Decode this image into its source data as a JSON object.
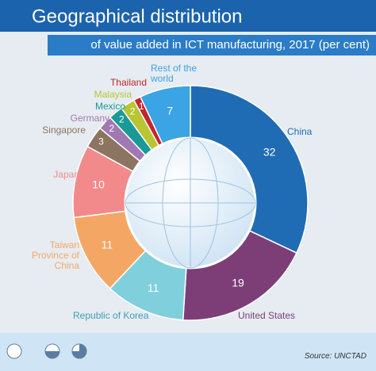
{
  "chart_data": {
    "type": "donut",
    "title": "Geographical distribution",
    "subtitle": "of value added in ICT manufacturing, 2017 (per cent)",
    "categories": [
      "China",
      "United States",
      "Republic of Korea",
      "Taiwan Province of China",
      "Japan",
      "Singapore",
      "Germany",
      "Mexico",
      "Malaysia",
      "Thailand",
      "Rest of the world"
    ],
    "values": [
      32,
      19,
      11,
      11,
      10,
      3,
      2,
      2,
      2,
      1,
      7
    ],
    "colors": [
      "#1f6cb4",
      "#7d3e78",
      "#7fd0dc",
      "#f4a765",
      "#f28a8c",
      "#8c7460",
      "#a278b2",
      "#1a9a96",
      "#b9c532",
      "#c4262e",
      "#3aa4e4"
    ],
    "source": "Source: UNCTAD"
  }
}
